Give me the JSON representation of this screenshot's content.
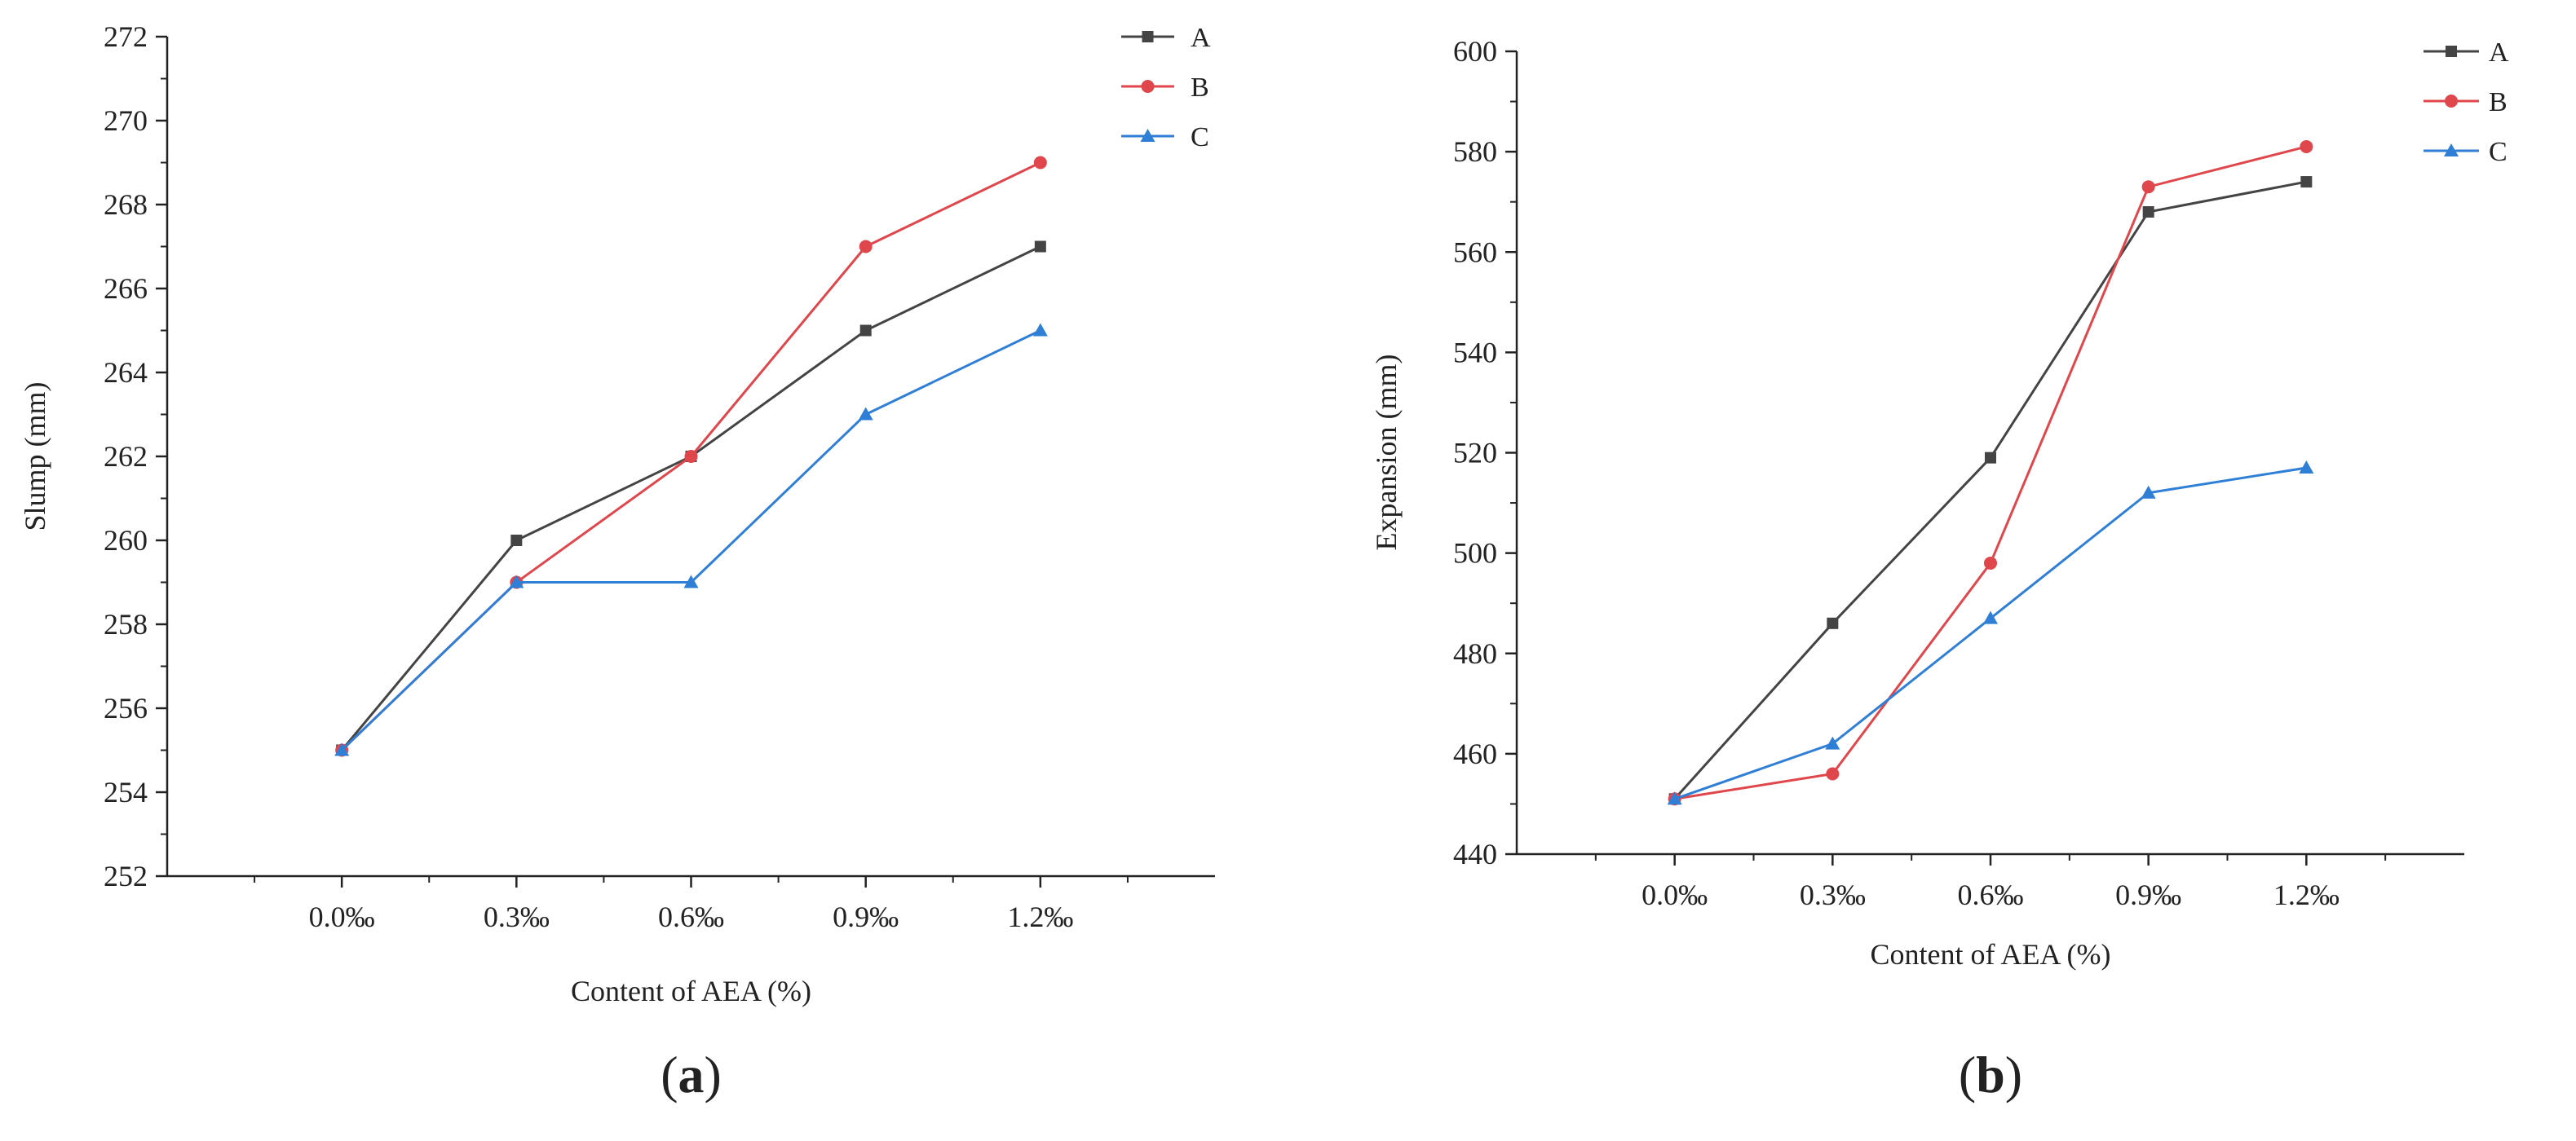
{
  "chart_data": [
    {
      "type": "line",
      "panel_label": "a",
      "title": "",
      "xlabel": "Content of AEA (%)",
      "ylabel": "Slump (mm)",
      "categories": [
        "0.0‰",
        "0.3‰",
        "0.6‰",
        "0.9‰",
        "1.2‰"
      ],
      "ylim": [
        252,
        272
      ],
      "yticks": [
        252,
        254,
        256,
        258,
        260,
        262,
        264,
        266,
        268,
        270,
        272
      ],
      "grid": false,
      "legend": "top-right",
      "series": [
        {
          "name": "A",
          "color": "#444444",
          "marker": "square",
          "values": [
            255,
            260,
            262,
            265,
            267
          ]
        },
        {
          "name": "B",
          "color": "#e0474c",
          "marker": "circle",
          "values": [
            255,
            259,
            262,
            267,
            269
          ]
        },
        {
          "name": "C",
          "color": "#2f7fd6",
          "marker": "triangle",
          "values": [
            255,
            259,
            259,
            263,
            265
          ]
        }
      ]
    },
    {
      "type": "line",
      "panel_label": "b",
      "title": "",
      "xlabel": "Content of AEA (%)",
      "ylabel": "Expansion (mm)",
      "categories": [
        "0.0‰",
        "0.3‰",
        "0.6‰",
        "0.9‰",
        "1.2‰"
      ],
      "ylim": [
        440,
        600
      ],
      "yticks": [
        440,
        460,
        480,
        500,
        520,
        540,
        560,
        580,
        600
      ],
      "grid": false,
      "legend": "top-right",
      "series": [
        {
          "name": "A",
          "color": "#444444",
          "marker": "square",
          "values": [
            451,
            486,
            519,
            568,
            574
          ]
        },
        {
          "name": "B",
          "color": "#e0474c",
          "marker": "circle",
          "values": [
            451,
            456,
            498,
            573,
            581
          ]
        },
        {
          "name": "C",
          "color": "#2f7fd6",
          "marker": "triangle",
          "values": [
            451,
            462,
            487,
            512,
            517
          ]
        }
      ]
    }
  ]
}
